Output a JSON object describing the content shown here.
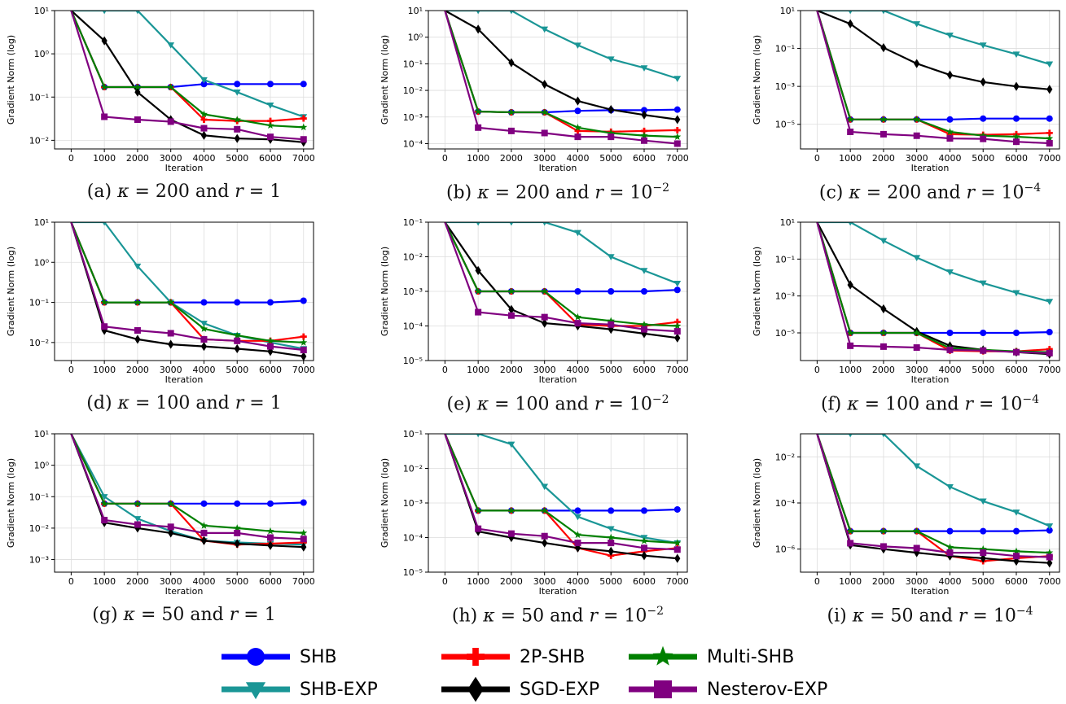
{
  "colors": {
    "SHB": "#0000ff",
    "SHB-EXP": "#1a9696",
    "2P-SHB": "#ff0000",
    "SGD-EXP": "#000000",
    "Multi-SHB": "#008000",
    "Nesterov-EXP": "#800080"
  },
  "legend": [
    {
      "name": "SHB",
      "marker": "circle"
    },
    {
      "name": "2P-SHB",
      "marker": "plus"
    },
    {
      "name": "Multi-SHB",
      "marker": "star"
    },
    {
      "name": "SHB-EXP",
      "marker": "triangle-down"
    },
    {
      "name": "SGD-EXP",
      "marker": "diamond"
    },
    {
      "name": "Nesterov-EXP",
      "marker": "square"
    }
  ],
  "chart_data": [
    {
      "type": "line",
      "caption": {
        "label": "(a)",
        "kappa": "200",
        "r_base": "1",
        "r_exp": ""
      },
      "xlabel": "Iteration",
      "ylabel": "Gradient Norm (log)",
      "xlim": [
        -500,
        7300
      ],
      "ylim_exp": [
        -2.2,
        1
      ],
      "xticks": [
        0,
        1000,
        2000,
        3000,
        4000,
        5000,
        6000,
        7000
      ],
      "yticks": [
        -2,
        -1,
        0,
        1
      ],
      "yscale": "log",
      "grid": true,
      "x": [
        0,
        1000,
        2000,
        3000,
        4000,
        5000,
        6000,
        7000
      ],
      "series": [
        {
          "name": "SHB",
          "values": [
            10,
            0.17,
            0.17,
            0.17,
            0.2,
            0.2,
            0.2,
            0.2
          ]
        },
        {
          "name": "SHB-EXP",
          "values": [
            20,
            20,
            10,
            1.6,
            0.25,
            0.13,
            0.065,
            0.035
          ]
        },
        {
          "name": "2P-SHB",
          "values": [
            10,
            0.17,
            0.17,
            0.17,
            0.03,
            0.028,
            0.028,
            0.032
          ]
        },
        {
          "name": "SGD-EXP",
          "values": [
            20,
            2.0,
            0.13,
            0.03,
            0.013,
            0.011,
            0.0105,
            0.009
          ]
        },
        {
          "name": "Multi-SHB",
          "values": [
            10,
            0.17,
            0.17,
            0.17,
            0.04,
            0.03,
            0.022,
            0.02
          ]
        },
        {
          "name": "Nesterov-EXP",
          "values": [
            10,
            0.035,
            0.03,
            0.027,
            0.019,
            0.018,
            0.012,
            0.0105
          ]
        }
      ]
    },
    {
      "type": "line",
      "caption": {
        "label": "(b)",
        "kappa": "200",
        "r_base": "10",
        "r_exp": "−2"
      },
      "xlabel": "Iteration",
      "ylabel": "Gradient Norm (log)",
      "xlim": [
        -500,
        7300
      ],
      "ylim_exp": [
        -4.2,
        1
      ],
      "xticks": [
        0,
        1000,
        2000,
        3000,
        4000,
        5000,
        6000,
        7000
      ],
      "yticks": [
        -4,
        -3,
        -2,
        -1,
        0,
        1
      ],
      "yscale": "log",
      "grid": true,
      "x": [
        0,
        1000,
        2000,
        3000,
        4000,
        5000,
        6000,
        7000
      ],
      "series": [
        {
          "name": "SHB",
          "values": [
            10,
            0.0016,
            0.0015,
            0.0015,
            0.0017,
            0.0018,
            0.0018,
            0.0019
          ]
        },
        {
          "name": "SHB-EXP",
          "values": [
            20,
            20,
            20,
            2.0,
            0.5,
            0.15,
            0.07,
            0.028
          ]
        },
        {
          "name": "2P-SHB",
          "values": [
            10,
            0.0016,
            0.0015,
            0.0015,
            0.0003,
            0.00028,
            0.0003,
            0.00032
          ]
        },
        {
          "name": "SGD-EXP",
          "values": [
            20,
            2.0,
            0.11,
            0.017,
            0.004,
            0.0019,
            0.0012,
            0.0008
          ]
        },
        {
          "name": "Multi-SHB",
          "values": [
            10,
            0.0016,
            0.0015,
            0.0015,
            0.0004,
            0.00025,
            0.0002,
            0.00018
          ]
        },
        {
          "name": "Nesterov-EXP",
          "values": [
            10,
            0.0004,
            0.0003,
            0.00025,
            0.00018,
            0.00018,
            0.00013,
            0.0001
          ]
        }
      ]
    },
    {
      "type": "line",
      "caption": {
        "label": "(c)",
        "kappa": "200",
        "r_base": "10",
        "r_exp": "−4"
      },
      "xlabel": "Iteration",
      "ylabel": "Gradient Norm (log)",
      "xlim": [
        -500,
        7300
      ],
      "ylim_exp": [
        -6.3,
        1
      ],
      "xticks": [
        0,
        1000,
        2000,
        3000,
        4000,
        5000,
        6000,
        7000
      ],
      "yticks": [
        -5,
        -3,
        -1,
        1
      ],
      "yscale": "log",
      "grid": true,
      "x": [
        0,
        1000,
        2000,
        3000,
        4000,
        5000,
        6000,
        7000
      ],
      "series": [
        {
          "name": "SHB",
          "values": [
            10,
            1.8e-05,
            1.8e-05,
            1.8e-05,
            1.8e-05,
            2e-05,
            2e-05,
            2e-05
          ]
        },
        {
          "name": "SHB-EXP",
          "values": [
            20,
            20,
            20,
            2.0,
            0.5,
            0.15,
            0.05,
            0.015
          ]
        },
        {
          "name": "2P-SHB",
          "values": [
            10,
            1.8e-05,
            1.8e-05,
            1.8e-05,
            3e-06,
            2.8e-06,
            3e-06,
            3.5e-06
          ]
        },
        {
          "name": "SGD-EXP",
          "values": [
            20,
            2.0,
            0.11,
            0.016,
            0.004,
            0.0017,
            0.001,
            0.0007
          ]
        },
        {
          "name": "Multi-SHB",
          "values": [
            10,
            1.8e-05,
            1.8e-05,
            1.8e-05,
            4e-06,
            2.5e-06,
            2.2e-06,
            1.8e-06
          ]
        },
        {
          "name": "Nesterov-EXP",
          "values": [
            10,
            4e-06,
            3e-06,
            2.5e-06,
            1.8e-06,
            1.7e-06,
            1.2e-06,
            1e-06
          ]
        }
      ]
    },
    {
      "type": "line",
      "caption": {
        "label": "(d)",
        "kappa": "100",
        "r_base": "1",
        "r_exp": ""
      },
      "xlabel": "Iteration",
      "ylabel": "Gradient Norm (log)",
      "xlim": [
        -500,
        7300
      ],
      "ylim_exp": [
        -2.45,
        1
      ],
      "xticks": [
        0,
        1000,
        2000,
        3000,
        4000,
        5000,
        6000,
        7000
      ],
      "yticks": [
        -2,
        -1,
        0,
        1
      ],
      "yscale": "log",
      "grid": true,
      "x": [
        0,
        1000,
        2000,
        3000,
        4000,
        5000,
        6000,
        7000
      ],
      "series": [
        {
          "name": "SHB",
          "values": [
            10,
            0.1,
            0.1,
            0.1,
            0.1,
            0.1,
            0.1,
            0.11
          ]
        },
        {
          "name": "SHB-EXP",
          "values": [
            20,
            10,
            0.8,
            0.1,
            0.03,
            0.015,
            0.01,
            0.007
          ]
        },
        {
          "name": "2P-SHB",
          "values": [
            10,
            0.1,
            0.1,
            0.1,
            0.012,
            0.011,
            0.011,
            0.014
          ]
        },
        {
          "name": "SGD-EXP",
          "values": [
            20,
            0.02,
            0.012,
            0.009,
            0.008,
            0.007,
            0.006,
            0.0045
          ]
        },
        {
          "name": "Multi-SHB",
          "values": [
            10,
            0.1,
            0.1,
            0.1,
            0.022,
            0.015,
            0.011,
            0.01
          ]
        },
        {
          "name": "Nesterov-EXP",
          "values": [
            10,
            0.025,
            0.02,
            0.017,
            0.012,
            0.011,
            0.008,
            0.0065
          ]
        }
      ]
    },
    {
      "type": "line",
      "caption": {
        "label": "(e)",
        "kappa": "100",
        "r_base": "10",
        "r_exp": "−2"
      },
      "xlabel": "Iteration",
      "ylabel": "Gradient Norm (log)",
      "xlim": [
        -500,
        7300
      ],
      "ylim_exp": [
        -5,
        -1
      ],
      "xticks": [
        0,
        1000,
        2000,
        3000,
        4000,
        5000,
        6000,
        7000
      ],
      "yticks": [
        -5,
        -4,
        -3,
        -2,
        -1
      ],
      "yscale": "log",
      "grid": true,
      "x": [
        0,
        1000,
        2000,
        3000,
        4000,
        5000,
        6000,
        7000
      ],
      "series": [
        {
          "name": "SHB",
          "values": [
            0.1,
            0.001,
            0.001,
            0.001,
            0.001,
            0.001,
            0.001,
            0.0011
          ]
        },
        {
          "name": "SHB-EXP",
          "values": [
            0.2,
            0.2,
            0.2,
            0.2,
            0.05,
            0.01,
            0.004,
            0.0017
          ]
        },
        {
          "name": "2P-SHB",
          "values": [
            0.1,
            0.001,
            0.001,
            0.001,
            0.00011,
            0.0001,
            0.0001,
            0.00013
          ]
        },
        {
          "name": "SGD-EXP",
          "values": [
            0.2,
            0.004,
            0.0003,
            0.00012,
            0.0001,
            8e-05,
            6e-05,
            4.5e-05
          ]
        },
        {
          "name": "Multi-SHB",
          "values": [
            0.1,
            0.001,
            0.001,
            0.001,
            0.00018,
            0.00014,
            0.00011,
            0.0001
          ]
        },
        {
          "name": "Nesterov-EXP",
          "values": [
            0.1,
            0.00025,
            0.0002,
            0.00018,
            0.00012,
            0.00011,
            8e-05,
            7e-05
          ]
        }
      ]
    },
    {
      "type": "line",
      "caption": {
        "label": "(f)",
        "kappa": "100",
        "r_base": "10",
        "r_exp": "−4"
      },
      "xlabel": "Iteration",
      "ylabel": "Gradient Norm (log)",
      "xlim": [
        -500,
        7300
      ],
      "ylim_exp": [
        -6.5,
        1
      ],
      "xticks": [
        0,
        1000,
        2000,
        3000,
        4000,
        5000,
        6000,
        7000
      ],
      "yticks": [
        -5,
        -3,
        -1,
        1
      ],
      "yscale": "log",
      "grid": true,
      "x": [
        0,
        1000,
        2000,
        3000,
        4000,
        5000,
        6000,
        7000
      ],
      "series": [
        {
          "name": "SHB",
          "values": [
            10,
            1e-05,
            1e-05,
            1e-05,
            1e-05,
            1e-05,
            1e-05,
            1.1e-05
          ]
        },
        {
          "name": "SHB-EXP",
          "values": [
            20,
            20,
            1.0,
            0.12,
            0.02,
            0.005,
            0.0015,
            0.0005
          ]
        },
        {
          "name": "2P-SHB",
          "values": [
            10,
            1e-05,
            1e-05,
            1e-05,
            1.1e-06,
            1e-06,
            1e-06,
            1.3e-06
          ]
        },
        {
          "name": "SGD-EXP",
          "values": [
            20,
            0.004,
            0.0002,
            1.2e-05,
            2e-06,
            1.2e-06,
            9e-07,
            7e-07
          ]
        },
        {
          "name": "Multi-SHB",
          "values": [
            10,
            1e-05,
            1e-05,
            1e-05,
            1.5e-06,
            1.2e-06,
            1e-06,
            9e-07
          ]
        },
        {
          "name": "Nesterov-EXP",
          "values": [
            10,
            2e-06,
            1.8e-06,
            1.6e-06,
            1.2e-06,
            1.1e-06,
            9e-07,
            8e-07
          ]
        }
      ]
    },
    {
      "type": "line",
      "caption": {
        "label": "(g)",
        "kappa": "50",
        "r_base": "1",
        "r_exp": ""
      },
      "xlabel": "Iteration",
      "ylabel": "Gradient Norm (log)",
      "xlim": [
        -500,
        7300
      ],
      "ylim_exp": [
        -3.4,
        1
      ],
      "xticks": [
        0,
        1000,
        2000,
        3000,
        4000,
        5000,
        6000,
        7000
      ],
      "yticks": [
        -3,
        -2,
        -1,
        0,
        1
      ],
      "yscale": "log",
      "grid": true,
      "x": [
        0,
        1000,
        2000,
        3000,
        4000,
        5000,
        6000,
        7000
      ],
      "series": [
        {
          "name": "SHB",
          "values": [
            10,
            0.06,
            0.06,
            0.06,
            0.06,
            0.06,
            0.06,
            0.065
          ]
        },
        {
          "name": "SHB-EXP",
          "values": [
            20,
            0.1,
            0.02,
            0.008,
            0.004,
            0.0035,
            0.0032,
            0.003
          ]
        },
        {
          "name": "2P-SHB",
          "values": [
            10,
            0.06,
            0.06,
            0.06,
            0.004,
            0.003,
            0.0032,
            0.0035
          ]
        },
        {
          "name": "SGD-EXP",
          "values": [
            20,
            0.015,
            0.01,
            0.007,
            0.004,
            0.0032,
            0.0028,
            0.0025
          ]
        },
        {
          "name": "Multi-SHB",
          "values": [
            10,
            0.06,
            0.06,
            0.06,
            0.012,
            0.01,
            0.008,
            0.007
          ]
        },
        {
          "name": "Nesterov-EXP",
          "values": [
            10,
            0.018,
            0.013,
            0.011,
            0.007,
            0.007,
            0.005,
            0.0045
          ]
        }
      ]
    },
    {
      "type": "line",
      "caption": {
        "label": "(h)",
        "kappa": "50",
        "r_base": "10",
        "r_exp": "−2"
      },
      "xlabel": "Iteration",
      "ylabel": "Gradient Norm (log)",
      "xlim": [
        -500,
        7300
      ],
      "ylim_exp": [
        -5,
        -1
      ],
      "xticks": [
        0,
        1000,
        2000,
        3000,
        4000,
        5000,
        6000,
        7000
      ],
      "yticks": [
        -5,
        -4,
        -3,
        -2,
        -1
      ],
      "yscale": "log",
      "grid": true,
      "x": [
        0,
        1000,
        2000,
        3000,
        4000,
        5000,
        6000,
        7000
      ],
      "series": [
        {
          "name": "SHB",
          "values": [
            0.1,
            0.0006,
            0.0006,
            0.0006,
            0.0006,
            0.0006,
            0.0006,
            0.00065
          ]
        },
        {
          "name": "SHB-EXP",
          "values": [
            0.2,
            0.2,
            0.05,
            0.003,
            0.0004,
            0.00018,
            0.0001,
            7e-05
          ]
        },
        {
          "name": "2P-SHB",
          "values": [
            0.1,
            0.0006,
            0.0006,
            0.0006,
            5e-05,
            3e-05,
            4e-05,
            5e-05
          ]
        },
        {
          "name": "SGD-EXP",
          "values": [
            0.2,
            0.00015,
            0.0001,
            7e-05,
            5e-05,
            4e-05,
            3e-05,
            2.5e-05
          ]
        },
        {
          "name": "Multi-SHB",
          "values": [
            0.1,
            0.0006,
            0.0006,
            0.0006,
            0.00012,
            0.0001,
            8e-05,
            7e-05
          ]
        },
        {
          "name": "Nesterov-EXP",
          "values": [
            0.1,
            0.00018,
            0.00013,
            0.00011,
            7e-05,
            7e-05,
            5e-05,
            4.5e-05
          ]
        }
      ]
    },
    {
      "type": "line",
      "caption": {
        "label": "(i)",
        "kappa": "50",
        "r_base": "10",
        "r_exp": "−4"
      },
      "xlabel": "Iteration",
      "ylabel": "Gradient Norm (log)",
      "xlim": [
        -500,
        7300
      ],
      "ylim_exp": [
        -7,
        -1
      ],
      "xticks": [
        0,
        1000,
        2000,
        3000,
        4000,
        5000,
        6000,
        7000
      ],
      "yticks": [
        -6,
        -4,
        -2
      ],
      "yscale": "log",
      "grid": true,
      "x": [
        0,
        1000,
        2000,
        3000,
        4000,
        5000,
        6000,
        7000
      ],
      "series": [
        {
          "name": "SHB",
          "values": [
            0.1,
            6e-06,
            6e-06,
            6e-06,
            6e-06,
            6e-06,
            6e-06,
            6.5e-06
          ]
        },
        {
          "name": "SHB-EXP",
          "values": [
            0.2,
            0.2,
            0.2,
            0.004,
            0.0005,
            0.00012,
            4e-05,
            1e-05
          ]
        },
        {
          "name": "2P-SHB",
          "values": [
            0.1,
            6e-06,
            6e-06,
            6e-06,
            5e-07,
            3e-07,
            4e-07,
            5e-07
          ]
        },
        {
          "name": "SGD-EXP",
          "values": [
            0.2,
            1.5e-06,
            1e-06,
            7e-07,
            5e-07,
            4e-07,
            3e-07,
            2.5e-07
          ]
        },
        {
          "name": "Multi-SHB",
          "values": [
            0.1,
            6e-06,
            6e-06,
            6e-06,
            1.2e-06,
            1e-06,
            8e-07,
            7e-07
          ]
        },
        {
          "name": "Nesterov-EXP",
          "values": [
            0.1,
            1.8e-06,
            1.3e-06,
            1.1e-06,
            7e-07,
            7e-07,
            5e-07,
            4.5e-07
          ]
        }
      ]
    }
  ]
}
